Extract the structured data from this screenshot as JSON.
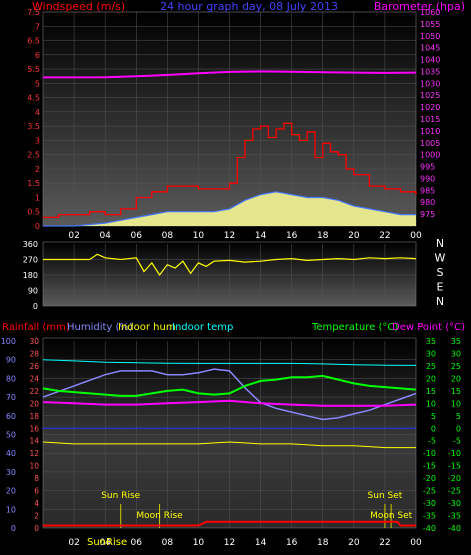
{
  "colors": {
    "background": "#000000",
    "wind_speed": "#ff0000",
    "wind_gust_fill": "#ffff99",
    "wind_avg": "#4477ff",
    "barometer": "#ff00ff",
    "wind_direction": "#ffff00",
    "rainfall": "#ff0000",
    "humidity": "#8888ff",
    "indoor_humidity": "#ffff00",
    "indoor_temp": "#00ffff",
    "temperature": "#00ff00",
    "dew_point": "#ff00ff"
  },
  "panels": {
    "wind": {
      "left_title": "Windspeed (m/s)",
      "center_title": "24 hour graph day, 08 July 2013",
      "right_title": "Barometer (hpa)"
    },
    "direction": {},
    "temperature": {
      "titles": [
        {
          "label": "Rainfall (mm)",
          "color": "#ff0000"
        },
        {
          "label": "Humidity (%)",
          "color": "#8888ff"
        },
        {
          "label": "Indoor hum",
          "color": "#ffff00"
        },
        {
          "label": "Indoor temp",
          "color": "#00ffff"
        },
        {
          "label": "Temperature (°C)",
          "color": "#00ff00"
        },
        {
          "label": "Dew Point (°C)",
          "color": "#ff00ff"
        }
      ],
      "annotations": [
        {
          "label": "Sun Rise",
          "hour": 5.0
        },
        {
          "label": "Moon Rise",
          "hour": 7.5
        },
        {
          "label": "Sun Set",
          "hour": 22.0
        },
        {
          "label": "Moon Set",
          "hour": 22.4
        }
      ],
      "bottom_marker": "SunRise"
    }
  },
  "chart_data": [
    {
      "type": "line",
      "title": "24 hour graph day, 08 July 2013",
      "x_ticks": [
        "02",
        "04",
        "06",
        "08",
        "10",
        "12",
        "14",
        "16",
        "18",
        "20",
        "22",
        "00"
      ],
      "left_axis": {
        "label": "Windspeed (m/s)",
        "ylim": [
          0,
          7.5
        ],
        "ticks": [
          "0",
          "0.5",
          "1",
          "1.5",
          "2",
          "2.5",
          "3",
          "3.5",
          "4",
          "4.5",
          "5",
          "5.5",
          "6",
          "6.5",
          "7",
          "7.5"
        ]
      },
      "right_axis": {
        "label": "Barometer (hpa)",
        "ylim": [
          970,
          1060
        ],
        "ticks": [
          "975",
          "980",
          "985",
          "990",
          "995",
          "1000",
          "1005",
          "1010",
          "1015",
          "1020",
          "1025",
          "1030",
          "1035",
          "1040",
          "1045",
          "1050",
          "1055",
          "1060"
        ]
      },
      "series": [
        {
          "name": "Windspeed",
          "axis": "left",
          "x": [
            0,
            1,
            2,
            3,
            4,
            5,
            6,
            7,
            8,
            9,
            10,
            11,
            12,
            12.5,
            13,
            13.5,
            14,
            14.5,
            15,
            15.5,
            16,
            16.5,
            17,
            17.5,
            18,
            18.5,
            19,
            19.5,
            20,
            21,
            22,
            23,
            24
          ],
          "y": [
            0.3,
            0.4,
            0.4,
            0.5,
            0.4,
            0.6,
            1.0,
            1.2,
            1.4,
            1.4,
            1.3,
            1.3,
            1.5,
            2.4,
            3.0,
            3.4,
            3.5,
            3.1,
            3.4,
            3.6,
            3.2,
            3.0,
            3.3,
            2.4,
            2.9,
            2.6,
            2.5,
            2.0,
            1.8,
            1.4,
            1.3,
            1.2,
            1.1
          ]
        },
        {
          "name": "Gust",
          "axis": "left",
          "x": [
            0,
            2,
            4,
            5,
            6,
            7,
            8,
            9,
            10,
            11,
            12,
            13,
            14,
            15,
            16,
            17,
            18,
            19,
            20,
            21,
            22,
            23,
            24
          ],
          "y": [
            0,
            0,
            0.1,
            0.2,
            0.3,
            0.4,
            0.5,
            0.5,
            0.5,
            0.5,
            0.6,
            0.9,
            1.1,
            1.2,
            1.1,
            1.0,
            1.0,
            0.9,
            0.7,
            0.6,
            0.5,
            0.4,
            0.4
          ]
        },
        {
          "name": "Barometer",
          "axis": "right",
          "x": [
            0,
            2,
            4,
            6,
            8,
            10,
            12,
            14,
            16,
            18,
            20,
            22,
            24
          ],
          "y": [
            1032.5,
            1032.5,
            1032.6,
            1033.0,
            1033.5,
            1034.2,
            1034.8,
            1035.0,
            1034.9,
            1034.7,
            1034.5,
            1034.4,
            1034.5
          ]
        }
      ]
    },
    {
      "type": "scatter",
      "title": "Wind direction",
      "x_ticks": [
        "02",
        "04",
        "06",
        "08",
        "10",
        "12",
        "14",
        "16",
        "18",
        "20",
        "22",
        "00"
      ],
      "left_axis": {
        "ylim": [
          0,
          360
        ],
        "ticks": [
          "0",
          "90",
          "180",
          "270",
          "360"
        ]
      },
      "right_axis": {
        "ticks": [
          "N",
          "W",
          "S",
          "E",
          "N"
        ]
      },
      "series": [
        {
          "name": "Wind direction",
          "x": [
            0,
            3,
            3.5,
            4,
            5,
            6,
            6.5,
            7,
            7.5,
            8,
            8.5,
            9,
            9.5,
            10,
            10.5,
            11,
            12,
            13,
            14,
            15,
            16,
            17,
            18,
            19,
            20,
            21,
            22,
            23,
            24
          ],
          "y": [
            270,
            270,
            300,
            280,
            270,
            280,
            200,
            250,
            180,
            240,
            220,
            260,
            190,
            250,
            230,
            260,
            265,
            255,
            260,
            270,
            275,
            265,
            270,
            275,
            270,
            280,
            275,
            280,
            275
          ]
        }
      ]
    },
    {
      "type": "line",
      "title": "",
      "x_ticks": [
        "02",
        "04",
        "06",
        "08",
        "10",
        "12",
        "14",
        "16",
        "18",
        "20",
        "22",
        "00"
      ],
      "left_axis_1": {
        "label": "Humidity (%)",
        "ylim": [
          0,
          100
        ],
        "ticks": [
          "0",
          "10",
          "20",
          "30",
          "40",
          "50",
          "60",
          "70",
          "80",
          "90",
          "100"
        ]
      },
      "left_axis_2": {
        "label": "Rainfall (mm)",
        "ylim": [
          0,
          30
        ],
        "ticks": [
          "0",
          "2",
          "4",
          "6",
          "8",
          "10",
          "12",
          "14",
          "16",
          "18",
          "20",
          "22",
          "24",
          "26",
          "28",
          "30"
        ]
      },
      "right_axis_1": {
        "label": "Temperature (°C)",
        "ylim": [
          -40,
          35
        ],
        "ticks": [
          "-40",
          "-35",
          "-30",
          "-25",
          "-20",
          "-15",
          "-10",
          "-5",
          "0",
          "5",
          "10",
          "15",
          "20",
          "25",
          "30",
          "35"
        ]
      },
      "right_axis_2": {
        "ylim": [
          -40,
          35
        ],
        "ticks": [
          "-40",
          "-35",
          "-30",
          "-25",
          "-20",
          "-15",
          "-10",
          "-5",
          "0",
          "5",
          "10",
          "15",
          "20",
          "25",
          "30",
          "35"
        ]
      },
      "series": [
        {
          "name": "Humidity",
          "axis": "humidity",
          "x": [
            0,
            2,
            3,
            4,
            5,
            6,
            7,
            8,
            9,
            10,
            11,
            12,
            13,
            14,
            15,
            16,
            17,
            18,
            19,
            20,
            21,
            22,
            23,
            24
          ],
          "y": [
            70,
            76,
            79,
            82,
            84,
            84,
            84,
            82,
            82,
            83,
            85,
            84,
            75,
            67,
            64,
            62,
            60,
            58,
            59,
            61,
            63,
            66,
            69,
            72
          ]
        },
        {
          "name": "Indoor hum",
          "axis": "humidity",
          "x": [
            0,
            2,
            4,
            6,
            8,
            10,
            12,
            14,
            16,
            18,
            20,
            22,
            24
          ],
          "y": [
            46,
            45,
            45,
            45,
            45,
            45,
            46,
            45,
            45,
            44,
            44,
            43,
            43
          ]
        },
        {
          "name": "Indoor temp",
          "axis": "temperature",
          "x": [
            0,
            2,
            4,
            6,
            8,
            10,
            12,
            14,
            16,
            18,
            20,
            22,
            24
          ],
          "y": [
            27.5,
            27,
            26.5,
            26.3,
            26.1,
            26,
            26,
            26,
            26,
            25.8,
            25.5,
            25.3,
            25.2
          ]
        },
        {
          "name": "Temperature",
          "axis": "temperature",
          "x": [
            0,
            1,
            2,
            3,
            4,
            5,
            6,
            7,
            8,
            9,
            10,
            11,
            12,
            13,
            14,
            15,
            16,
            17,
            18,
            19,
            20,
            21,
            22,
            23,
            24
          ],
          "y": [
            16,
            15,
            14.5,
            14,
            13.5,
            13,
            13,
            14,
            15,
            15.5,
            14,
            13.5,
            14,
            17,
            19,
            19.5,
            20.5,
            20.5,
            21,
            19.5,
            18,
            17,
            16.5,
            16,
            15.5
          ]
        },
        {
          "name": "Dew Point",
          "axis": "temperature",
          "x": [
            0,
            2,
            4,
            6,
            8,
            10,
            12,
            14,
            16,
            18,
            20,
            22,
            24
          ],
          "y": [
            10.5,
            10,
            9.5,
            9.5,
            10,
            10.5,
            11,
            10,
            9.5,
            9,
            9,
            9,
            9.5
          ]
        },
        {
          "name": "Rainfall",
          "axis": "rain",
          "x": [
            0,
            10,
            10.5,
            12,
            14,
            16,
            18,
            20,
            22,
            22.8,
            23,
            24
          ],
          "y": [
            0.4,
            0.4,
            1.0,
            1.0,
            1.0,
            1.0,
            1.0,
            1.0,
            1.0,
            1.0,
            0.4,
            0.4
          ]
        }
      ]
    }
  ]
}
